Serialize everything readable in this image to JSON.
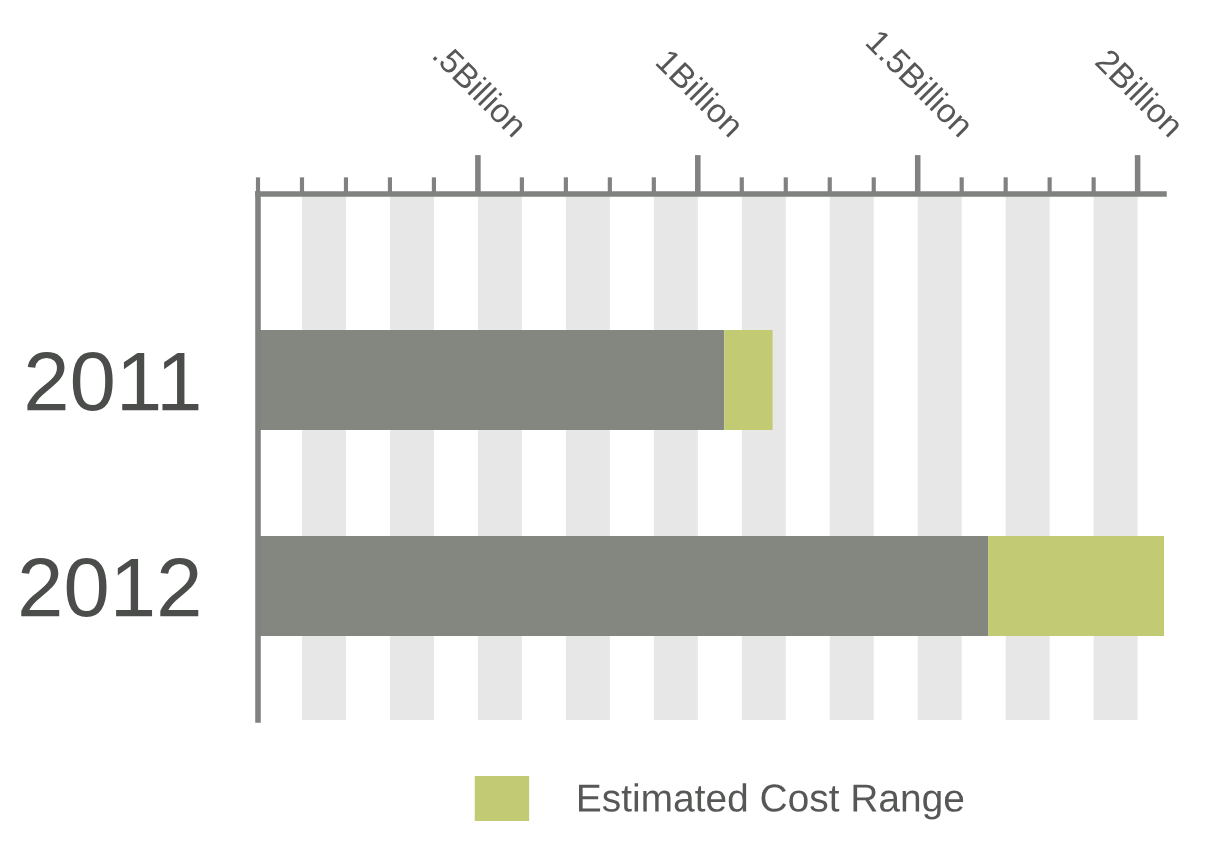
{
  "chart_data": {
    "type": "bar",
    "orientation": "horizontal",
    "stacked": true,
    "categories": [
      "2011",
      "2012"
    ],
    "series": [
      {
        "color": "#838780",
        "values": [
          1.06,
          1.66
        ]
      },
      {
        "name": "Estimated Cost Range",
        "color": "#c2ca74",
        "values": [
          0.11,
          0.4
        ]
      }
    ],
    "xlim": [
      0,
      2.06
    ],
    "xticks": [
      {
        "value": 0,
        "label": null
      },
      {
        "value": 0.1,
        "label": null
      },
      {
        "value": 0.2,
        "label": null
      },
      {
        "value": 0.3,
        "label": null
      },
      {
        "value": 0.4,
        "label": null
      },
      {
        "value": 0.5,
        "label": ".5Billion"
      },
      {
        "value": 0.6,
        "label": null
      },
      {
        "value": 0.7,
        "label": null
      },
      {
        "value": 0.8,
        "label": null
      },
      {
        "value": 0.9,
        "label": null
      },
      {
        "value": 1,
        "label": "1Billion"
      },
      {
        "value": 1.1,
        "label": null
      },
      {
        "value": 1.2,
        "label": null
      },
      {
        "value": 1.3,
        "label": null
      },
      {
        "value": 1.4,
        "label": null
      },
      {
        "value": 1.5,
        "label": "1.5Billion"
      },
      {
        "value": 1.6,
        "label": null
      },
      {
        "value": 1.7,
        "label": null
      },
      {
        "value": 1.8,
        "label": null
      },
      {
        "value": 1.9,
        "label": null
      },
      {
        "value": 2,
        "label": "2Billion"
      }
    ],
    "bands": [
      {
        "axis": "x",
        "from": 0.1,
        "to": 0.2,
        "color": "#e6e7e6"
      },
      {
        "axis": "x",
        "from": 0.3,
        "to": 0.4,
        "color": "#e6e7e6"
      },
      {
        "axis": "x",
        "from": 0.5,
        "to": 0.6,
        "color": "#e6e7e6"
      },
      {
        "axis": "x",
        "from": 0.7,
        "to": 0.8,
        "color": "#e6e7e6"
      },
      {
        "axis": "x",
        "from": 0.9,
        "to": 1.0,
        "color": "#e6e7e6"
      },
      {
        "axis": "x",
        "from": 1.1,
        "to": 1.2,
        "color": "#e6e7e6"
      },
      {
        "axis": "x",
        "from": 1.3,
        "to": 1.4,
        "color": "#e6e7e6"
      },
      {
        "axis": "x",
        "from": 1.5,
        "to": 1.6,
        "color": "#e6e7e6"
      },
      {
        "axis": "x",
        "from": 1.7,
        "to": 1.8,
        "color": "#e6e7e6"
      },
      {
        "axis": "x",
        "from": 1.9,
        "to": 2.0,
        "color": "#e6e7e6"
      }
    ],
    "grid": false,
    "legend": "bottom"
  }
}
